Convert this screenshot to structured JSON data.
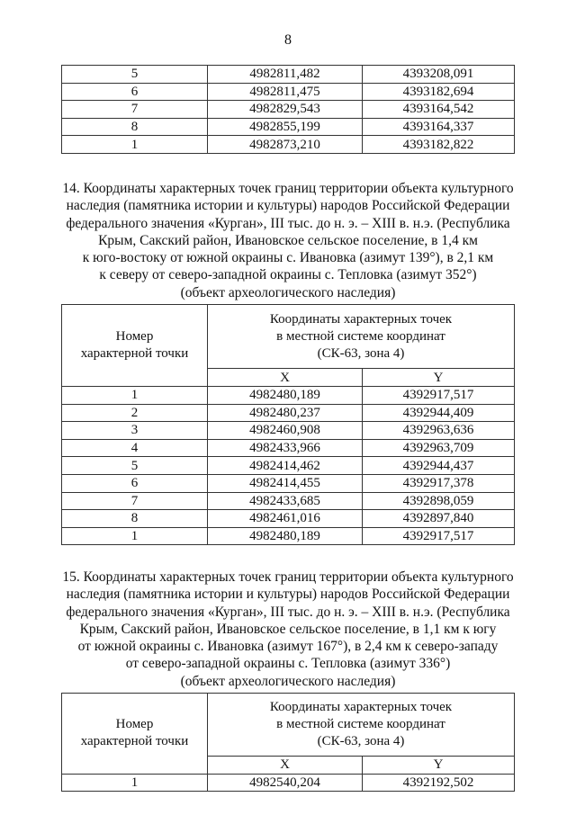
{
  "page_number": "8",
  "table_continued": {
    "rows": [
      [
        "5",
        "4982811,482",
        "4393208,091"
      ],
      [
        "6",
        "4982811,475",
        "4393182,694"
      ],
      [
        "7",
        "4982829,543",
        "4393164,542"
      ],
      [
        "8",
        "4982855,199",
        "4393164,337"
      ],
      [
        "1",
        "4982873,210",
        "4393182,822"
      ]
    ]
  },
  "section14": {
    "lines": [
      "14. Координаты характерных точек границ территории объекта культурного",
      "наследия (памятника истории и культуры) народов Российской Федерации",
      "федерального значения «Курган», III тыс. до н. э. – XIII в. н.э. (Республика",
      "Крым, Сакский район, Ивановское сельское поселение, в 1,4 км",
      "к юго-востоку от южной окраины с. Ивановка (азимут 139°), в 2,1 км",
      "к северу от северо-западной окраины с. Тепловка (азимут 352°)",
      "(объект археологического наследия)"
    ],
    "table": {
      "col1_header": [
        "Номер",
        "характерной точки"
      ],
      "coords_header": [
        "Координаты характерных точек",
        "в местной системе координат",
        "(СК-63, зона 4)"
      ],
      "x_label": "X",
      "y_label": "Y",
      "rows": [
        [
          "1",
          "4982480,189",
          "4392917,517"
        ],
        [
          "2",
          "4982480,237",
          "4392944,409"
        ],
        [
          "3",
          "4982460,908",
          "4392963,636"
        ],
        [
          "4",
          "4982433,966",
          "4392963,709"
        ],
        [
          "5",
          "4982414,462",
          "4392944,437"
        ],
        [
          "6",
          "4982414,455",
          "4392917,378"
        ],
        [
          "7",
          "4982433,685",
          "4392898,059"
        ],
        [
          "8",
          "4982461,016",
          "4392897,840"
        ],
        [
          "1",
          "4982480,189",
          "4392917,517"
        ]
      ]
    }
  },
  "section15": {
    "lines": [
      "15. Координаты характерных точек границ территории объекта культурного",
      "наследия (памятника истории и культуры) народов Российской Федерации",
      "федерального значения «Курган», III тыс. до н. э. – XIII в. н.э. (Республика",
      "Крым, Сакский район, Ивановское сельское поселение, в 1,1 км к югу",
      "от южной окраины с. Ивановка (азимут 167°), в 2,4 км к северо-западу",
      "от северо-западной окраины с. Тепловка (азимут 336°)",
      "(объект археологического наследия)"
    ],
    "table": {
      "col1_header": [
        "Номер",
        "характерной точки"
      ],
      "coords_header": [
        "Координаты характерных точек",
        "в местной системе координат",
        "(СК-63, зона 4)"
      ],
      "x_label": "X",
      "y_label": "Y",
      "rows": [
        [
          "1",
          "4982540,204",
          "4392192,502"
        ]
      ]
    }
  }
}
